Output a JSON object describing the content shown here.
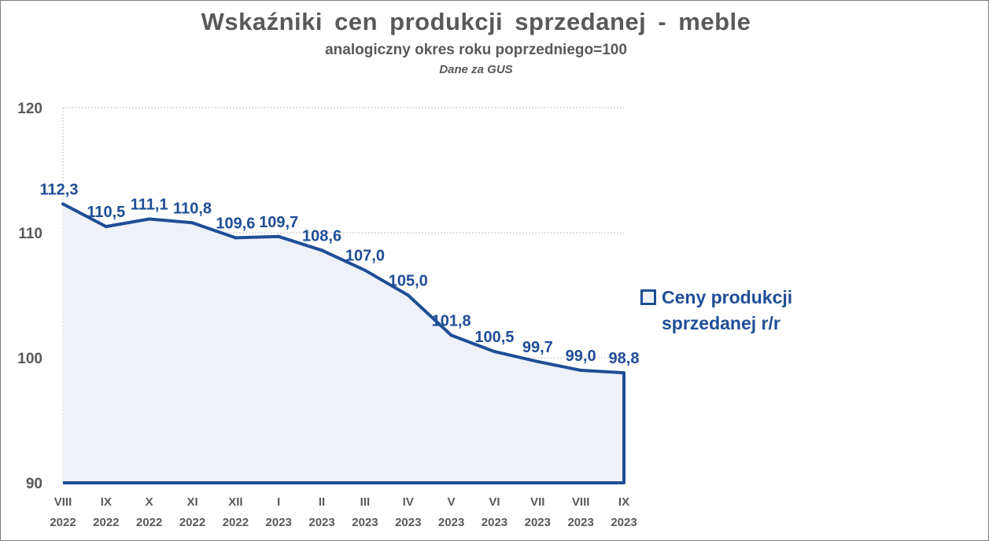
{
  "chart_data": {
    "type": "area",
    "title": "Wskaźniki cen produkcji sprzedanej - meble",
    "subtitle": "analogiczny okres roku poprzedniego=100",
    "source": "Dane za GUS",
    "categories": [
      [
        "VIII",
        "2022"
      ],
      [
        "IX",
        "2022"
      ],
      [
        "X",
        "2022"
      ],
      [
        "XI",
        "2022"
      ],
      [
        "XII",
        "2022"
      ],
      [
        "I",
        "2023"
      ],
      [
        "II",
        "2023"
      ],
      [
        "III",
        "2023"
      ],
      [
        "IV",
        "2023"
      ],
      [
        "V",
        "2023"
      ],
      [
        "VI",
        "2023"
      ],
      [
        "VII",
        "2023"
      ],
      [
        "VIII",
        "2023"
      ],
      [
        "IX",
        "2023"
      ]
    ],
    "series": [
      {
        "name": "Ceny produkcji sprzedanej r/r",
        "values": [
          112.3,
          110.5,
          111.1,
          110.8,
          109.6,
          109.7,
          108.6,
          107.0,
          105.0,
          101.8,
          100.5,
          99.7,
          99.0,
          98.8
        ],
        "labels": [
          "112,3",
          "110,5",
          "111,1",
          "110,8",
          "109,6",
          "109,7",
          "108,6",
          "107,0",
          "105,0",
          "101,8",
          "100,5",
          "99,7",
          "99,0",
          "98,8"
        ]
      }
    ],
    "ylim": [
      90,
      120
    ],
    "yticks": [
      "90",
      "100",
      "110",
      "120"
    ],
    "grid": true,
    "legend_position": "right",
    "colors": {
      "line": "#1f4e96",
      "fill": "#eef1f8",
      "text": "#595959",
      "grid": "#bfbfbf"
    }
  }
}
